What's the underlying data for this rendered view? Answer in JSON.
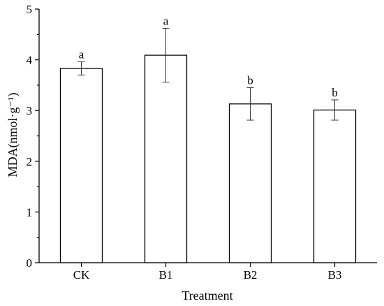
{
  "chart_data": {
    "type": "bar",
    "categories": [
      "CK",
      "B1",
      "B2",
      "B3"
    ],
    "values": [
      3.83,
      4.09,
      3.13,
      3.01
    ],
    "errors": [
      0.13,
      0.53,
      0.32,
      0.2
    ],
    "significance": [
      "a",
      "a",
      "b",
      "b"
    ],
    "xlabel": "Treatment",
    "ylabel": "MDA(nmol·g⁻¹)",
    "ylim": [
      0,
      5
    ],
    "yticks": [
      "0",
      "1",
      "2",
      "3",
      "4",
      "5"
    ],
    "grid": false,
    "legend": false
  }
}
